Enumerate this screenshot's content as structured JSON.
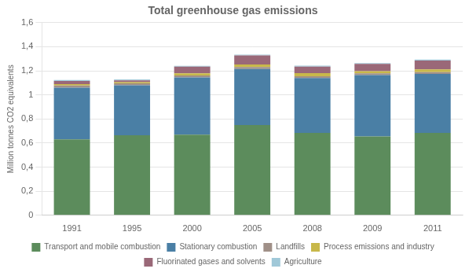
{
  "chart_data": {
    "type": "bar",
    "title": "Total greenhouse gas emissions",
    "ylabel": "Million tonnes CO2 equivalents",
    "categories": [
      "1991",
      "1995",
      "2000",
      "2005",
      "2008",
      "2009",
      "2011"
    ],
    "series": [
      {
        "name": "Transport and mobile combustion",
        "color": "#5c8c5c",
        "values": [
          0.63,
          0.665,
          0.67,
          0.75,
          0.685,
          0.655,
          0.685
        ]
      },
      {
        "name": "Stationary combustion",
        "color": "#4a7fa5",
        "values": [
          0.43,
          0.415,
          0.475,
          0.465,
          0.455,
          0.51,
          0.49
        ]
      },
      {
        "name": "Landfills",
        "color": "#a09088",
        "values": [
          0.018,
          0.016,
          0.016,
          0.016,
          0.015,
          0.014,
          0.014
        ]
      },
      {
        "name": "Process emissions and industry",
        "color": "#c8b84a",
        "values": [
          0.012,
          0.01,
          0.018,
          0.022,
          0.025,
          0.018,
          0.022
        ]
      },
      {
        "name": "Fluorinated gases and solvents",
        "color": "#9a6878",
        "values": [
          0.025,
          0.015,
          0.055,
          0.075,
          0.055,
          0.06,
          0.075
        ]
      },
      {
        "name": "Agriculture",
        "color": "#a0c8d8",
        "values": [
          0.008,
          0.007,
          0.007,
          0.007,
          0.007,
          0.007,
          0.007
        ]
      }
    ],
    "stacked": true,
    "ylim": [
      0,
      1.6
    ],
    "yticks": [
      0,
      {
        "value": 0.2,
        "label": "0,2"
      },
      {
        "value": 0.4,
        "label": "0,4"
      },
      {
        "value": 0.6,
        "label": "0,6"
      },
      {
        "value": 0.8,
        "label": "0,8"
      },
      1,
      {
        "value": 1.2,
        "label": "1,2"
      },
      {
        "value": 1.4,
        "label": "1,4"
      },
      {
        "value": 1.6,
        "label": "1,6"
      }
    ],
    "grid": true,
    "legend": "bottom"
  }
}
